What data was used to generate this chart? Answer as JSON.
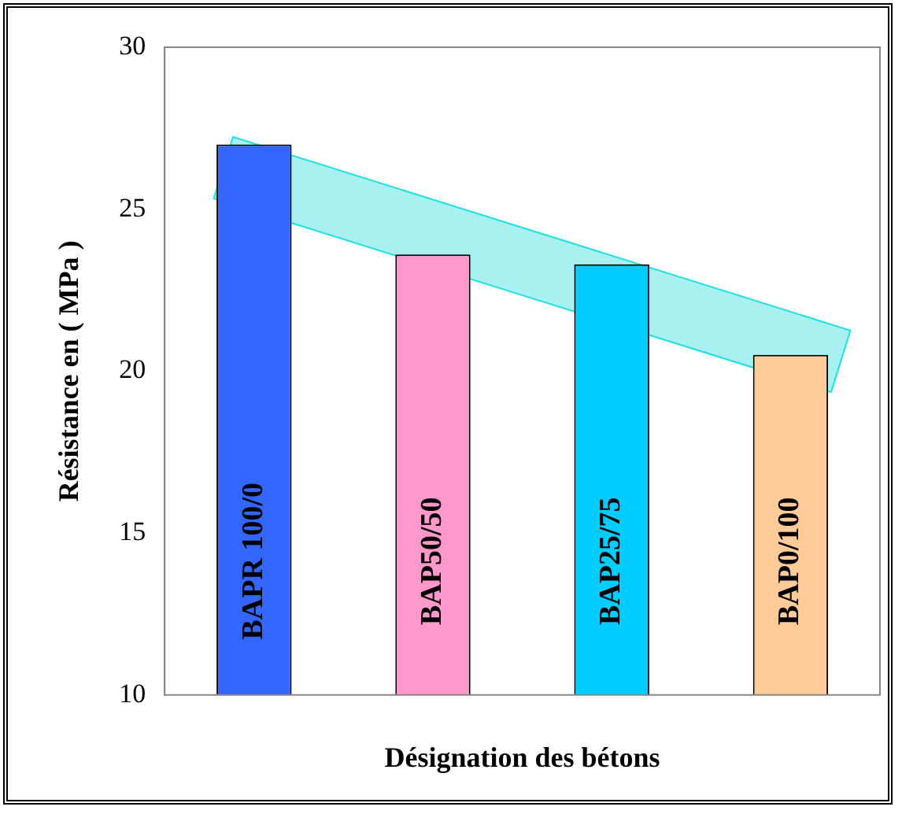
{
  "chart_data": {
    "type": "bar",
    "xlabel": "Désignation des bétons",
    "ylabel": "Résistance en ( MPa )",
    "categories": [
      "BAPR 100/0",
      "BAP50/50",
      "BAP25/75",
      "BAP0/100"
    ],
    "values": [
      27.0,
      23.6,
      23.3,
      20.5
    ],
    "colors": [
      "#3366ff",
      "#ff99cc",
      "#00ccff",
      "#ffcc99"
    ],
    "ylim": [
      10,
      30
    ],
    "yticks": [
      10,
      15,
      20,
      25,
      30
    ],
    "grid": false
  }
}
